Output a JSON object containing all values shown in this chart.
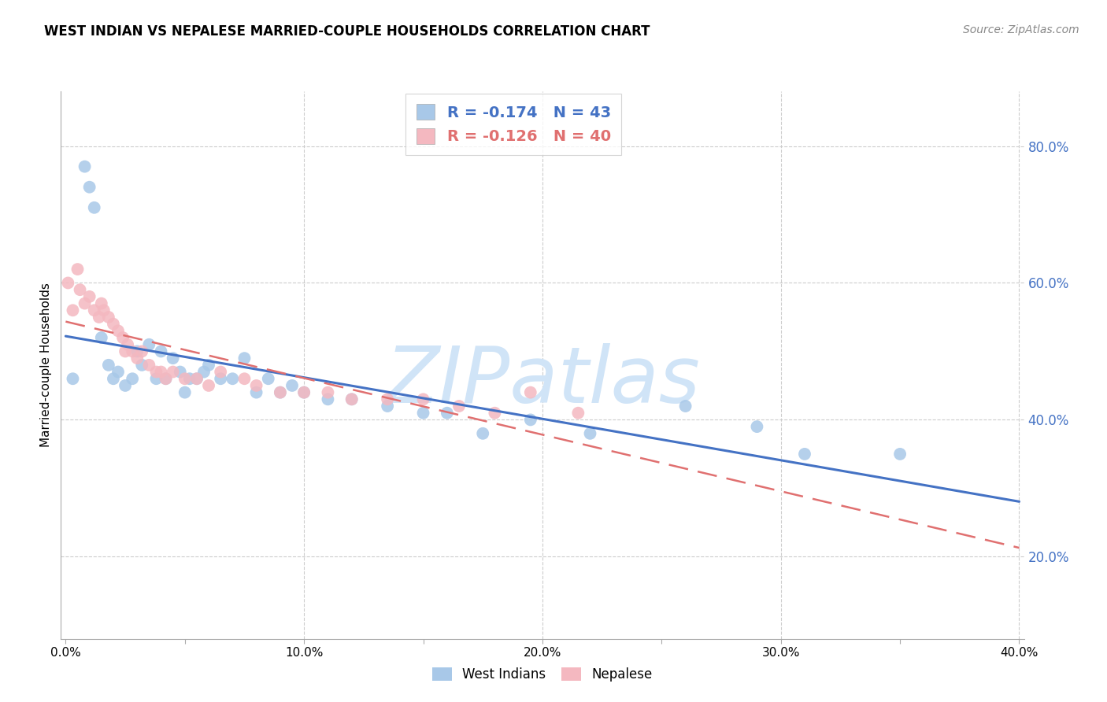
{
  "title": "WEST INDIAN VS NEPALESE MARRIED-COUPLE HOUSEHOLDS CORRELATION CHART",
  "source": "Source: ZipAtlas.com",
  "ylabel_left": "Married-couple Households",
  "ylabel_right_ticks": [
    0.2,
    0.4,
    0.6,
    0.8
  ],
  "ylabel_right_labels": [
    "20.0%",
    "40.0%",
    "60.0%",
    "80.0%"
  ],
  "xlim": [
    -0.002,
    0.402
  ],
  "ylim": [
    0.08,
    0.88
  ],
  "legend_entry1": {
    "R": "-0.174",
    "N": "43"
  },
  "legend_entry2": {
    "R": "-0.126",
    "N": "40"
  },
  "legend_label1": "West Indians",
  "legend_label2": "Nepalese",
  "west_indians_x": [
    0.003,
    0.008,
    0.01,
    0.012,
    0.015,
    0.018,
    0.02,
    0.022,
    0.025,
    0.028,
    0.03,
    0.032,
    0.035,
    0.038,
    0.04,
    0.042,
    0.045,
    0.048,
    0.05,
    0.052,
    0.055,
    0.058,
    0.06,
    0.065,
    0.07,
    0.075,
    0.08,
    0.085,
    0.09,
    0.095,
    0.1,
    0.11,
    0.12,
    0.135,
    0.15,
    0.16,
    0.175,
    0.195,
    0.22,
    0.26,
    0.29,
    0.31,
    0.35
  ],
  "west_indians_y": [
    0.46,
    0.77,
    0.74,
    0.71,
    0.52,
    0.48,
    0.46,
    0.47,
    0.45,
    0.46,
    0.5,
    0.48,
    0.51,
    0.46,
    0.5,
    0.46,
    0.49,
    0.47,
    0.44,
    0.46,
    0.46,
    0.47,
    0.48,
    0.46,
    0.46,
    0.49,
    0.44,
    0.46,
    0.44,
    0.45,
    0.44,
    0.43,
    0.43,
    0.42,
    0.41,
    0.41,
    0.38,
    0.4,
    0.38,
    0.42,
    0.39,
    0.35,
    0.35
  ],
  "nepalese_x": [
    0.001,
    0.003,
    0.005,
    0.006,
    0.008,
    0.01,
    0.012,
    0.014,
    0.015,
    0.016,
    0.018,
    0.02,
    0.022,
    0.024,
    0.025,
    0.026,
    0.028,
    0.03,
    0.032,
    0.035,
    0.038,
    0.04,
    0.042,
    0.045,
    0.05,
    0.055,
    0.06,
    0.065,
    0.075,
    0.08,
    0.09,
    0.1,
    0.11,
    0.12,
    0.135,
    0.15,
    0.165,
    0.18,
    0.195,
    0.215
  ],
  "nepalese_y": [
    0.6,
    0.56,
    0.62,
    0.59,
    0.57,
    0.58,
    0.56,
    0.55,
    0.57,
    0.56,
    0.55,
    0.54,
    0.53,
    0.52,
    0.5,
    0.51,
    0.5,
    0.49,
    0.5,
    0.48,
    0.47,
    0.47,
    0.46,
    0.47,
    0.46,
    0.46,
    0.45,
    0.47,
    0.46,
    0.45,
    0.44,
    0.44,
    0.44,
    0.43,
    0.43,
    0.43,
    0.42,
    0.41,
    0.44,
    0.41
  ],
  "blue_line_color": "#4472c4",
  "pink_line_color": "#e07070",
  "blue_scatter_color": "#a8c8e8",
  "pink_scatter_color": "#f4b8c0",
  "watermark": "ZIPatlas",
  "watermark_color": "#d0e4f7",
  "right_axis_color": "#4472c4",
  "grid_color": "#cccccc",
  "background_color": "#ffffff",
  "title_fontsize": 12,
  "source_fontsize": 10,
  "legend_fontsize": 14,
  "axis_label_fontsize": 11,
  "tick_fontsize": 11
}
